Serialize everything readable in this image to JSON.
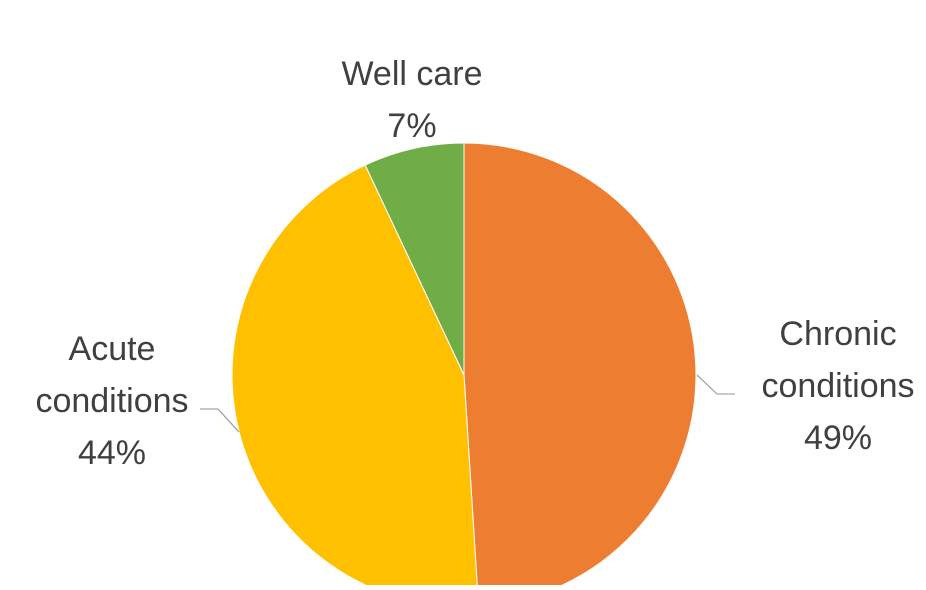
{
  "chart_data": {
    "type": "pie",
    "title": "",
    "categories": [
      "Chronic conditions",
      "Acute conditions",
      "Well care"
    ],
    "values": [
      49,
      44,
      7
    ],
    "slices": [
      {
        "label_lines": [
          "Chronic",
          "conditions"
        ],
        "percent_label": "49%",
        "value": 49,
        "color": "#ED7D31"
      },
      {
        "label_lines": [
          "Acute",
          "conditions"
        ],
        "percent_label": "44%",
        "value": 44,
        "color": "#FFC000"
      },
      {
        "label_lines": [
          "Well care"
        ],
        "percent_label": "7%",
        "value": 7,
        "color": "#70AD47"
      }
    ],
    "start_angle": "12 o'clock",
    "direction": "clockwise",
    "legend": "none",
    "data_labels": "outside with leader lines"
  }
}
